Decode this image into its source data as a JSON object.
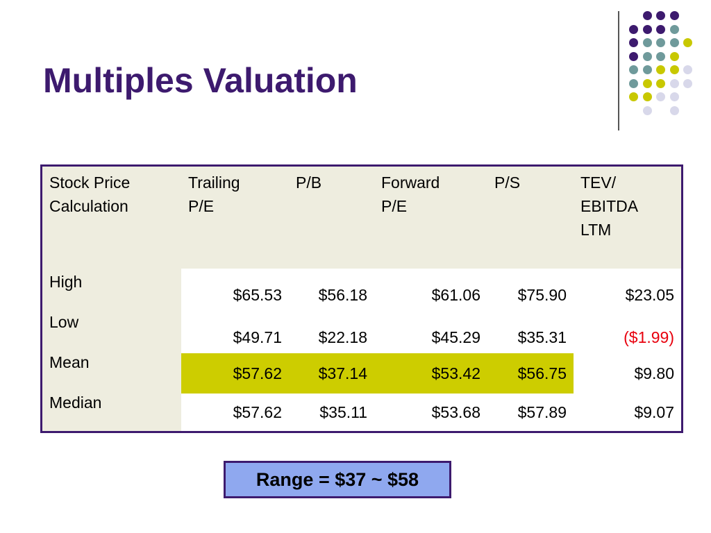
{
  "slide": {
    "title": "Multiples Valuation"
  },
  "table": {
    "headers": [
      "Stock Price\nCalculation",
      "Trailing\nP/E",
      "P/B",
      "Forward\nP/E",
      "P/S",
      "TEV/\nEBITDA\nLTM"
    ],
    "rows": [
      {
        "label": "High",
        "values": [
          "$65.53",
          "$56.18",
          "$61.06",
          "$75.90",
          "$23.05"
        ]
      },
      {
        "label": "Low",
        "values": [
          "$49.71",
          "$22.18",
          "$45.29",
          "$35.31",
          "($1.99)"
        ]
      },
      {
        "label": "Mean",
        "values": [
          "$57.62",
          "$37.14",
          "$53.42",
          "$56.75",
          "$9.80"
        ]
      },
      {
        "label": "Median",
        "values": [
          "$57.62",
          "$35.11",
          "$53.68",
          "$57.89",
          "$9.07"
        ]
      }
    ],
    "highlighted_row": "Mean",
    "highlighted_columns": [
      "Trailing P/E",
      "P/B",
      "Forward P/E",
      "P/S"
    ],
    "negative_value": "($1.99)",
    "colors": {
      "border": "#3d1a6e",
      "header_bg": "#eeeddf",
      "highlight": "#cdcd00",
      "negative": "#e8000d"
    }
  },
  "range_box": {
    "text": "Range = $37 ~ $58",
    "background": "#8fa8ef"
  },
  "decoration": {
    "dot_colors": {
      "purple": "#3d1a6e",
      "teal": "#6f9a9b",
      "olive": "#c8c800",
      "lavender": "#d8d8ea"
    }
  }
}
